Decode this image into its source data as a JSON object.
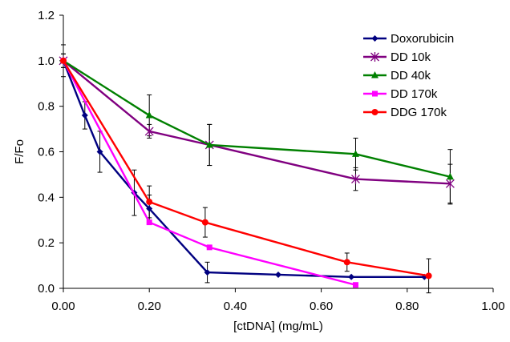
{
  "chart_data": {
    "type": "line",
    "title": "",
    "xlabel": "[ctDNA] (mg/mL)",
    "ylabel": "F/Fo",
    "xlim": [
      0,
      1.0
    ],
    "ylim": [
      0,
      1.2
    ],
    "x_ticks": [
      "0.00",
      "0.20",
      "0.40",
      "0.60",
      "0.80",
      "1.00"
    ],
    "y_ticks": [
      "0.0",
      "0.2",
      "0.4",
      "0.6",
      "0.8",
      "1.0",
      "1.2"
    ],
    "grid": false,
    "legend_position": "top-right",
    "series": [
      {
        "name": "Doxorubicin",
        "color": "#000080",
        "marker": "diamond",
        "x": [
          0.0,
          0.05,
          0.085,
          0.165,
          0.2,
          0.335,
          0.5,
          0.67,
          0.84
        ],
        "y": [
          1.0,
          0.76,
          0.6,
          0.42,
          0.35,
          0.07,
          0.06,
          0.05,
          0.05
        ],
        "err": [
          0.07,
          0.06,
          0.09,
          0.1,
          0.06,
          0.045,
          0.0,
          0.0,
          0.0
        ]
      },
      {
        "name": "DD 10k",
        "color": "#800080",
        "marker": "asterisk",
        "x": [
          0.0,
          0.2,
          0.34,
          0.68,
          0.9
        ],
        "y": [
          1.0,
          0.69,
          0.63,
          0.48,
          0.46
        ],
        "err": [
          0.03,
          0.03,
          0.09,
          0.05,
          0.085
        ]
      },
      {
        "name": "DD 40k",
        "color": "#008000",
        "marker": "triangle",
        "x": [
          0.0,
          0.2,
          0.34,
          0.68,
          0.9
        ],
        "y": [
          1.0,
          0.76,
          0.63,
          0.59,
          0.49
        ],
        "err": [
          0.03,
          0.09,
          0.09,
          0.07,
          0.12
        ]
      },
      {
        "name": "DD 170k",
        "color": "#FF00FF",
        "marker": "square",
        "x": [
          0.0,
          0.2,
          0.34,
          0.68
        ],
        "y": [
          1.0,
          0.29,
          0.18,
          0.015
        ],
        "err": [
          0.0,
          0.0,
          0.0,
          0.0
        ]
      },
      {
        "name": "DDG 170k",
        "color": "#FF0000",
        "marker": "circle",
        "x": [
          0.0,
          0.2,
          0.33,
          0.66,
          0.85
        ],
        "y": [
          1.0,
          0.38,
          0.29,
          0.115,
          0.055
        ],
        "err": [
          0.0,
          0.07,
          0.065,
          0.04,
          0.075
        ]
      }
    ]
  }
}
